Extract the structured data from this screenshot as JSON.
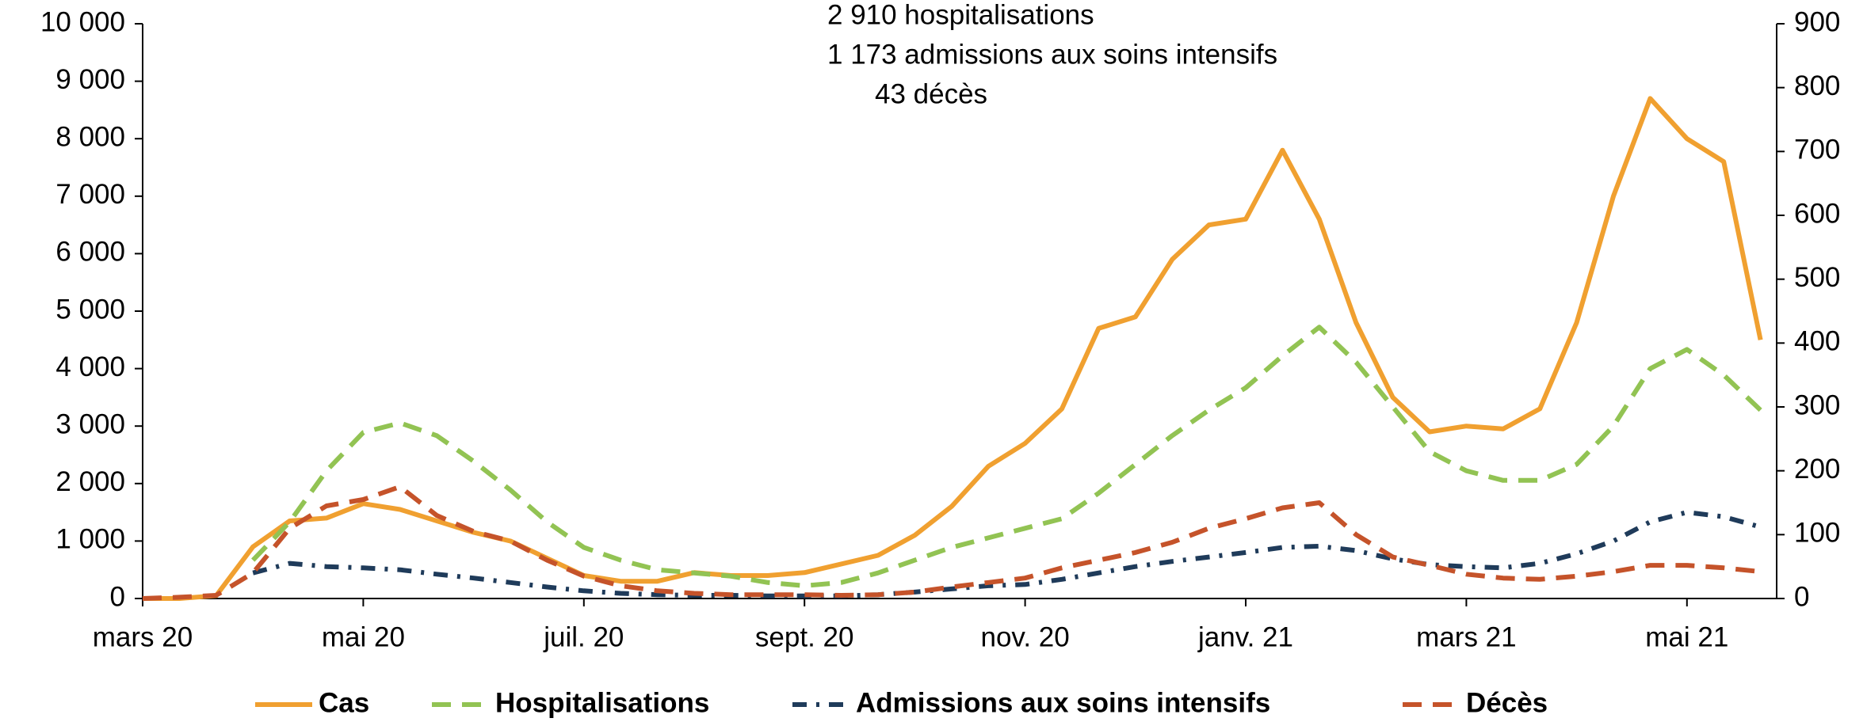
{
  "chart_data": {
    "type": "line",
    "annotations": [
      "2 910 hospitalisations",
      "1 173 admissions aux soins intensifs",
      "43 décès"
    ],
    "categories": [
      "mars 20",
      null,
      null,
      null,
      null,
      null,
      "mai 20",
      null,
      null,
      null,
      null,
      null,
      "juil. 20",
      null,
      null,
      null,
      null,
      null,
      "sept. 20",
      null,
      null,
      null,
      null,
      null,
      "nov. 20",
      null,
      null,
      null,
      null,
      null,
      "janv. 21",
      null,
      null,
      null,
      null,
      null,
      "mars 21",
      null,
      null,
      null,
      null,
      null,
      "mai 21",
      null,
      null
    ],
    "ylim": [
      0,
      10000
    ],
    "yticks": [
      0,
      {
        "value": 1000,
        "label": "1 000"
      },
      {
        "value": 2000,
        "label": "2 000"
      },
      {
        "value": 3000,
        "label": "3 000"
      },
      {
        "value": 4000,
        "label": "4 000"
      },
      {
        "value": 5000,
        "label": "5 000"
      },
      {
        "value": 6000,
        "label": "6 000"
      },
      {
        "value": 7000,
        "label": "7 000"
      },
      {
        "value": 8000,
        "label": "8 000"
      },
      {
        "value": 9000,
        "label": "9 000"
      },
      {
        "value": 10000,
        "label": "10 000"
      }
    ],
    "y2lim": [
      0,
      900
    ],
    "y2ticks": [
      0,
      100,
      200,
      300,
      400,
      500,
      600,
      700,
      800,
      900
    ],
    "series": [
      {
        "name": "Cas",
        "color": "#f0a030",
        "dash": "none",
        "values": [
          0,
          0,
          50,
          900,
          1350,
          1400,
          1650,
          1550,
          1350,
          1150,
          1000,
          700,
          400,
          300,
          300,
          450,
          400,
          400,
          450,
          600,
          750,
          1100,
          1600,
          2300,
          2700,
          3300,
          4700,
          4900,
          5900,
          6500,
          6600,
          7800,
          6600,
          4800,
          3500,
          2900,
          3000,
          2950,
          3300,
          4800,
          7000,
          8700,
          8000,
          7600,
          4500
        ]
      },
      {
        "name": "Hospitalisations",
        "color": "#92c353",
        "dash": "dashed",
        "axis": "y2",
        "values": [
          null,
          null,
          null,
          60,
          120,
          200,
          260,
          275,
          255,
          215,
          170,
          120,
          80,
          60,
          45,
          40,
          35,
          25,
          20,
          25,
          40,
          60,
          80,
          95,
          110,
          125,
          165,
          210,
          255,
          295,
          330,
          380,
          425,
          370,
          300,
          230,
          200,
          185,
          185,
          210,
          270,
          360,
          390,
          350,
          295
        ]
      },
      {
        "name": "Admissions aux soins intensifs",
        "color": "#1f3b5a",
        "dash": "dashdot",
        "axis": "y2",
        "values": [
          null,
          null,
          null,
          40,
          55,
          50,
          48,
          45,
          38,
          32,
          25,
          18,
          12,
          8,
          6,
          5,
          5,
          4,
          4,
          4,
          6,
          10,
          15,
          20,
          22,
          30,
          40,
          50,
          58,
          65,
          72,
          80,
          82,
          75,
          62,
          53,
          50,
          48,
          55,
          70,
          90,
          120,
          135,
          128,
          112
        ]
      },
      {
        "name": "Décès",
        "color": "#c5532a",
        "dash": "dashed",
        "axis": "y2",
        "values": [
          0,
          2,
          5,
          40,
          110,
          145,
          155,
          175,
          130,
          105,
          90,
          60,
          35,
          20,
          12,
          8,
          6,
          6,
          6,
          5,
          6,
          10,
          18,
          25,
          32,
          48,
          60,
          72,
          88,
          110,
          125,
          142,
          150,
          100,
          65,
          52,
          38,
          32,
          30,
          35,
          42,
          52,
          52,
          48,
          42
        ]
      }
    ]
  }
}
